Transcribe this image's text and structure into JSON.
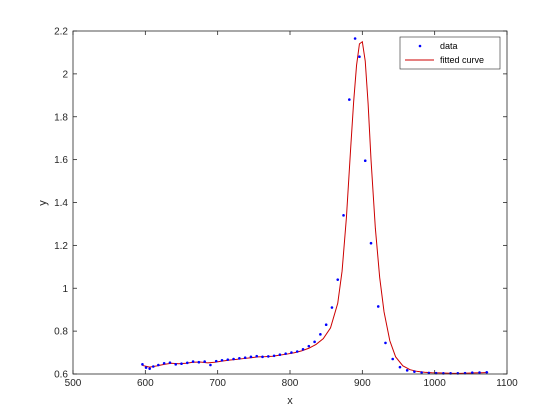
{
  "chart_data": {
    "type": "scatter",
    "title": "",
    "xlabel": "x",
    "ylabel": "y",
    "xlim": [
      500,
      1100
    ],
    "ylim": [
      0.6,
      2.2
    ],
    "xticks": [
      500,
      600,
      700,
      800,
      900,
      1000,
      1100
    ],
    "yticks": [
      0.6,
      0.8,
      1,
      1.2,
      1.4,
      1.6,
      1.8,
      2,
      2.2
    ],
    "grid": false,
    "legend_position": "top-right",
    "series": [
      {
        "name": "data",
        "style": "markers",
        "color": "#0000ff",
        "x": [
          596,
          601,
          606,
          611,
          618,
          626,
          634,
          642,
          650,
          658,
          666,
          674,
          682,
          690,
          698,
          706,
          714,
          722,
          730,
          738,
          746,
          754,
          762,
          770,
          778,
          786,
          794,
          802,
          810,
          818,
          826,
          834,
          842,
          850,
          858,
          866,
          874,
          882,
          890,
          896,
          904,
          912,
          922,
          932,
          942,
          952,
          962,
          972,
          982,
          992,
          1002,
          1012,
          1022,
          1032,
          1042,
          1052,
          1062,
          1072
        ],
        "y": [
          0.645,
          0.63,
          0.625,
          0.635,
          0.642,
          0.65,
          0.653,
          0.645,
          0.648,
          0.652,
          0.658,
          0.655,
          0.658,
          0.642,
          0.66,
          0.664,
          0.667,
          0.67,
          0.673,
          0.676,
          0.68,
          0.683,
          0.68,
          0.682,
          0.685,
          0.69,
          0.695,
          0.7,
          0.705,
          0.715,
          0.73,
          0.75,
          0.785,
          0.83,
          0.91,
          1.04,
          1.34,
          1.88,
          2.165,
          2.08,
          1.595,
          1.21,
          0.915,
          0.745,
          0.67,
          0.632,
          0.617,
          0.611,
          0.607,
          0.605,
          0.604,
          0.603,
          0.603,
          0.603,
          0.604,
          0.606,
          0.607,
          0.608
        ]
      },
      {
        "name": "fitted curve",
        "style": "line",
        "color": "#cc0000",
        "x": [
          596,
          606,
          616,
          626,
          636,
          646,
          656,
          666,
          676,
          686,
          696,
          706,
          716,
          726,
          736,
          746,
          756,
          766,
          776,
          786,
          796,
          806,
          816,
          826,
          836,
          846,
          856,
          866,
          872,
          878,
          884,
          888,
          892,
          896,
          900,
          904,
          908,
          912,
          918,
          924,
          930,
          938,
          946,
          956,
          966,
          976,
          986,
          996,
          1006,
          1016,
          1026,
          1036,
          1046,
          1056,
          1066,
          1074
        ],
        "y": [
          0.64,
          0.632,
          0.638,
          0.645,
          0.65,
          0.648,
          0.65,
          0.655,
          0.656,
          0.652,
          0.655,
          0.66,
          0.665,
          0.668,
          0.672,
          0.676,
          0.68,
          0.681,
          0.683,
          0.688,
          0.693,
          0.699,
          0.708,
          0.72,
          0.738,
          0.765,
          0.815,
          0.93,
          1.08,
          1.33,
          1.66,
          1.87,
          2.04,
          2.14,
          2.15,
          2.06,
          1.86,
          1.6,
          1.28,
          1.05,
          0.89,
          0.755,
          0.68,
          0.638,
          0.62,
          0.612,
          0.608,
          0.606,
          0.605,
          0.604,
          0.603,
          0.603,
          0.604,
          0.605,
          0.606,
          0.607
        ]
      }
    ]
  }
}
